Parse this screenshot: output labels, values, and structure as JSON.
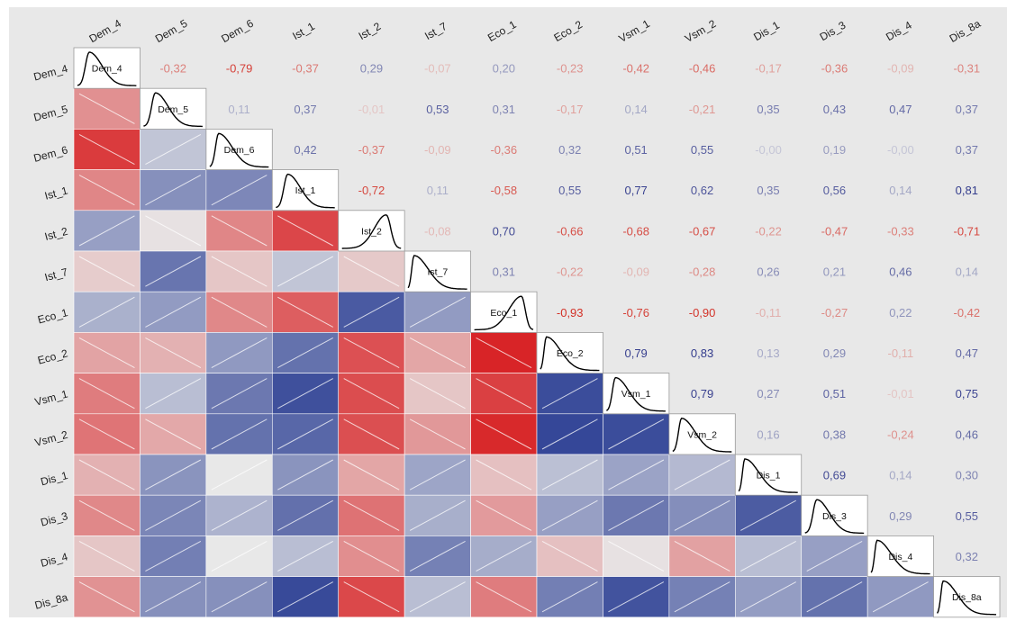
{
  "chart_data": {
    "type": "heatmap",
    "variables": [
      "Dem_4",
      "Dem_5",
      "Dem_6",
      "Ist_1",
      "Ist_2",
      "Ist_7",
      "Eco_1",
      "Eco_2",
      "Vsm_1",
      "Vsm_2",
      "Dis_1",
      "Dis_3",
      "Dis_4",
      "Dis_8a"
    ],
    "upper_labels": [
      [
        null,
        "-0,32",
        "-0,79",
        "-0,37",
        "0,29",
        "-0,07",
        "0,20",
        "-0,23",
        "-0,42",
        "-0,46",
        "-0,17",
        "-0,36",
        "-0,09",
        "-0,31"
      ],
      [
        null,
        null,
        "0,11",
        "0,37",
        "-0,01",
        "0,53",
        "0,31",
        "-0,17",
        "0,14",
        "-0,21",
        "0,35",
        "0,43",
        "0,47",
        "0,37"
      ],
      [
        null,
        null,
        null,
        "0,42",
        "-0,37",
        "-0,09",
        "-0,36",
        "0,32",
        "0,51",
        "0,55",
        "-0,00",
        "0,19",
        "-0,00",
        "0,37"
      ],
      [
        null,
        null,
        null,
        null,
        "-0,72",
        "0,11",
        "-0,58",
        "0,55",
        "0,77",
        "0,62",
        "0,35",
        "0,56",
        "0,14",
        "0,81"
      ],
      [
        null,
        null,
        null,
        null,
        null,
        "-0,08",
        "0,70",
        "-0,66",
        "-0,68",
        "-0,67",
        "-0,22",
        "-0,47",
        "-0,33",
        "-0,71"
      ],
      [
        null,
        null,
        null,
        null,
        null,
        null,
        "0,31",
        "-0,22",
        "-0,09",
        "-0,28",
        "0,26",
        "0,21",
        "0,46",
        "0,14"
      ],
      [
        null,
        null,
        null,
        null,
        null,
        null,
        null,
        "-0,93",
        "-0,76",
        "-0,90",
        "-0,11",
        "-0,27",
        "0,22",
        "-0,42"
      ],
      [
        null,
        null,
        null,
        null,
        null,
        null,
        null,
        null,
        "0,79",
        "0,83",
        "0,13",
        "0,29",
        "-0,11",
        "0,47"
      ],
      [
        null,
        null,
        null,
        null,
        null,
        null,
        null,
        null,
        null,
        "0,79",
        "0,27",
        "0,51",
        "-0,01",
        "0,75"
      ],
      [
        null,
        null,
        null,
        null,
        null,
        null,
        null,
        null,
        null,
        null,
        "0,16",
        "0,38",
        "-0,24",
        "0,46"
      ],
      [
        null,
        null,
        null,
        null,
        null,
        null,
        null,
        null,
        null,
        null,
        null,
        "0,69",
        "0,14",
        "0,30"
      ],
      [
        null,
        null,
        null,
        null,
        null,
        null,
        null,
        null,
        null,
        null,
        null,
        null,
        "0,29",
        "0,55"
      ],
      [
        null,
        null,
        null,
        null,
        null,
        null,
        null,
        null,
        null,
        null,
        null,
        null,
        null,
        "0,32"
      ],
      [
        null,
        null,
        null,
        null,
        null,
        null,
        null,
        null,
        null,
        null,
        null,
        null,
        null,
        null
      ]
    ],
    "lower_values": [
      [
        null,
        null,
        null,
        null,
        null,
        null,
        null,
        null,
        null,
        null,
        null,
        null,
        null,
        null
      ],
      [
        -0.32,
        null,
        null,
        null,
        null,
        null,
        null,
        null,
        null,
        null,
        null,
        null,
        null,
        null
      ],
      [
        -0.79,
        0.11,
        null,
        null,
        null,
        null,
        null,
        null,
        null,
        null,
        null,
        null,
        null,
        null
      ],
      [
        -0.37,
        0.37,
        0.42,
        null,
        null,
        null,
        null,
        null,
        null,
        null,
        null,
        null,
        null,
        null
      ],
      [
        0.29,
        -0.01,
        -0.37,
        -0.72,
        null,
        null,
        null,
        null,
        null,
        null,
        null,
        null,
        null,
        null
      ],
      [
        -0.07,
        0.53,
        -0.09,
        0.11,
        -0.08,
        null,
        null,
        null,
        null,
        null,
        null,
        null,
        null,
        null
      ],
      [
        0.2,
        0.31,
        -0.36,
        -0.58,
        0.7,
        0.31,
        null,
        null,
        null,
        null,
        null,
        null,
        null,
        null
      ],
      [
        -0.23,
        -0.17,
        0.32,
        0.55,
        -0.66,
        -0.22,
        -0.93,
        null,
        null,
        null,
        null,
        null,
        null,
        null
      ],
      [
        -0.42,
        0.14,
        0.51,
        0.77,
        -0.68,
        -0.09,
        -0.76,
        0.79,
        null,
        null,
        null,
        null,
        null,
        null
      ],
      [
        -0.46,
        -0.21,
        0.55,
        0.62,
        -0.67,
        -0.28,
        -0.9,
        0.83,
        0.79,
        null,
        null,
        null,
        null,
        null
      ],
      [
        -0.17,
        0.35,
        -0.0,
        0.35,
        -0.22,
        0.26,
        -0.11,
        0.13,
        0.27,
        0.16,
        null,
        null,
        null,
        null
      ],
      [
        -0.36,
        0.43,
        0.19,
        0.56,
        -0.47,
        0.21,
        -0.27,
        0.29,
        0.51,
        0.38,
        0.69,
        null,
        null,
        null
      ],
      [
        -0.09,
        0.47,
        -0.0,
        0.14,
        -0.33,
        0.46,
        0.22,
        -0.11,
        -0.01,
        -0.24,
        0.14,
        0.29,
        null,
        null
      ],
      [
        -0.31,
        0.37,
        0.37,
        0.81,
        -0.71,
        0.14,
        -0.42,
        0.47,
        0.75,
        0.46,
        0.3,
        0.55,
        0.32,
        null
      ]
    ],
    "diagonal": "density",
    "density_peaks": [
      0.2,
      0.2,
      0.15,
      0.2,
      0.75,
      0.1,
      0.8,
      0.1,
      0.15,
      0.15,
      0.1,
      0.2,
      0.1,
      0.1
    ],
    "colors": {
      "negative": "#d7191c",
      "positive": "#1a2f8c",
      "neutral": "#e8e8e8"
    },
    "grid": false,
    "legend": "none"
  }
}
